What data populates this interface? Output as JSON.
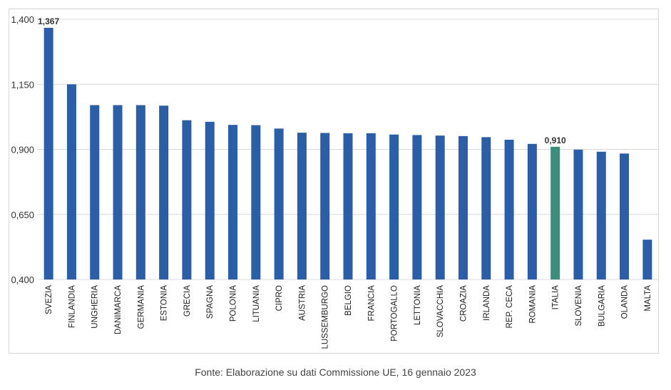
{
  "chart_data": {
    "type": "bar",
    "categories": [
      "SVEZIA",
      "FINLANDIA",
      "UNGHERIA",
      "DANIMARCA",
      "GERMANIA",
      "ESTONIA",
      "GRECIA",
      "SPAGNA",
      "POLONIA",
      "LITUANIA",
      "CIPRO",
      "AUSTRIA",
      "LUSSEMBURGO",
      "BELGIO",
      "FRANCIA",
      "PORTOGALLO",
      "LETTONIA",
      "SLOVACCHIA",
      "CROAZIA",
      "IRLANDA",
      "REP. CECA",
      "ROMANIA",
      "ITALIA",
      "SLOVENIA",
      "BULGARIA",
      "OLANDA",
      "MALTA"
    ],
    "values": [
      1.367,
      1.15,
      1.07,
      1.07,
      1.07,
      1.068,
      1.012,
      1.006,
      0.994,
      0.993,
      0.98,
      0.964,
      0.963,
      0.962,
      0.962,
      0.957,
      0.955,
      0.953,
      0.951,
      0.947,
      0.937,
      0.921,
      0.91,
      0.899,
      0.891,
      0.884,
      0.553
    ],
    "value_labels": [
      {
        "category": "SVEZIA",
        "text": "1,367"
      },
      {
        "category": "ITALIA",
        "text": "0,910"
      }
    ],
    "highlight": {
      "category": "ITALIA",
      "color": "#3d8d7d"
    },
    "bar_color": "#2b5ea8",
    "ylim": [
      0.4,
      1.4
    ],
    "yticks": [
      "0,400",
      "0,650",
      "0,900",
      "1,150",
      "1,400"
    ],
    "ytick_values": [
      0.4,
      0.65,
      0.9,
      1.15,
      1.4
    ],
    "grid": true,
    "source": "Fonte: Elaborazione su dati Commissione UE, 16 gennaio 2023"
  }
}
